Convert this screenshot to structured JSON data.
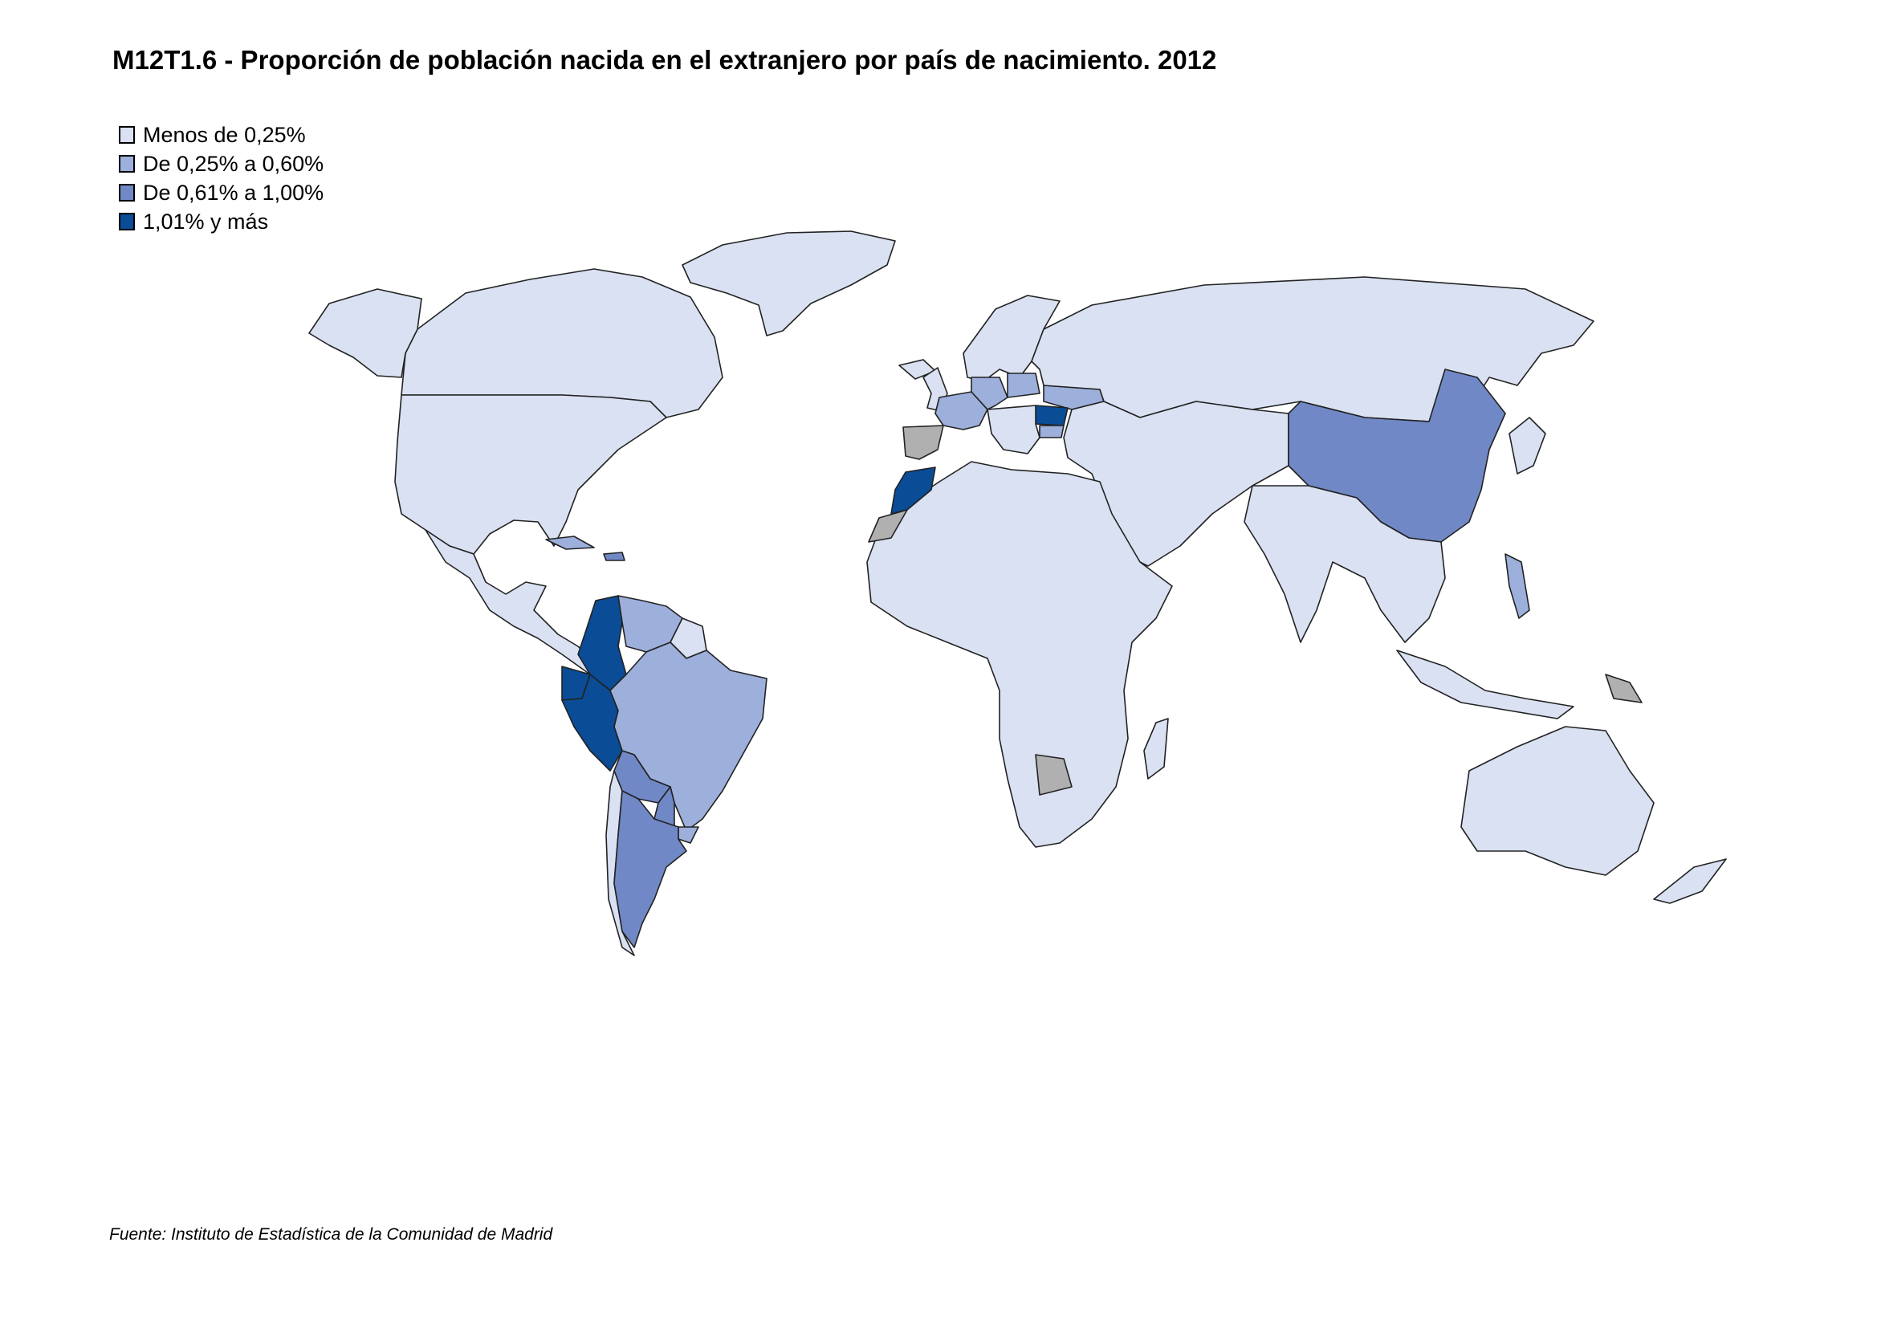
{
  "title": "M12T1.6 - Proporción de población nacida en el extranjero por país de nacimiento. 2012",
  "legend": [
    {
      "label": "Menos de 0,25%",
      "color": "#d9e1f2",
      "class": "c1"
    },
    {
      "label": "De 0,25% a 0,60%",
      "color": "#9dafdb",
      "class": "c2"
    },
    {
      "label": "De 0,61% a 1,00%",
      "color": "#7188c6",
      "class": "c3"
    },
    {
      "label": "1,01%  y más",
      "color": "#0a4c96",
      "class": "c4"
    }
  ],
  "no_data_color": "#b0b0b0",
  "map_data": {
    "type": "choropleth",
    "regions": [
      {
        "name": "Ecuador",
        "class": "1,01%  y más"
      },
      {
        "name": "Colombia",
        "class": "1,01%  y más"
      },
      {
        "name": "Peru",
        "class": "1,01%  y más"
      },
      {
        "name": "Morocco",
        "class": "1,01%  y más"
      },
      {
        "name": "Romania",
        "class": "1,01%  y más"
      },
      {
        "name": "China",
        "class": "De 0,61% a 1,00%"
      },
      {
        "name": "Argentina",
        "class": "De 0,61% a 1,00%"
      },
      {
        "name": "Bolivia",
        "class": "De 0,61% a 1,00%"
      },
      {
        "name": "Paraguay",
        "class": "De 0,61% a 1,00%"
      },
      {
        "name": "Dominican Republic",
        "class": "De 0,61% a 1,00%"
      },
      {
        "name": "Venezuela",
        "class": "De 0,25% a 0,60%"
      },
      {
        "name": "Brazil",
        "class": "De 0,25% a 0,60%"
      },
      {
        "name": "Uruguay",
        "class": "De 0,25% a 0,60%"
      },
      {
        "name": "France",
        "class": "De 0,25% a 0,60%"
      },
      {
        "name": "Germany",
        "class": "De 0,25% a 0,60%"
      },
      {
        "name": "Poland",
        "class": "De 0,25% a 0,60%"
      },
      {
        "name": "Ukraine",
        "class": "De 0,25% a 0,60%"
      },
      {
        "name": "Bulgaria",
        "class": "De 0,25% a 0,60%"
      },
      {
        "name": "Cuba",
        "class": "De 0,25% a 0,60%"
      },
      {
        "name": "Philippines",
        "class": "De 0,25% a 0,60%"
      },
      {
        "name": "Spain",
        "class": "no data"
      },
      {
        "name": "Western Sahara",
        "class": "no data"
      },
      {
        "name": "Botswana",
        "class": "no data"
      },
      {
        "name": "Papua New Guinea",
        "class": "no data"
      }
    ]
  },
  "source": "Fuente: Instituto de Estadística de la Comunidad de Madrid"
}
